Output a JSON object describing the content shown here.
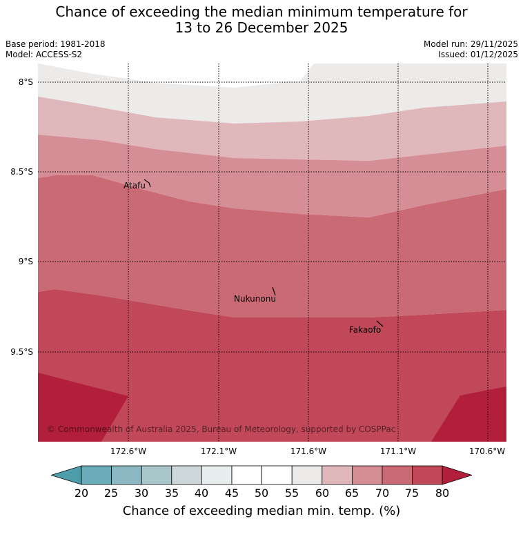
{
  "title_line1": "Chance of exceeding the median minimum temperature for",
  "title_line2": "13 to 26 December 2025",
  "base_period": "Base period: 1981-2018",
  "model": "Model: ACCESS-S2",
  "model_run": "Model run: 29/11/2025",
  "issued": "Issued: 01/12/2025",
  "latitude_labels": [
    "8°S",
    "8.5°S",
    "9°S",
    "9.5°S"
  ],
  "longitude_labels": [
    "172.6°W",
    "172.1°W",
    "171.6°W",
    "171.1°W",
    "170.6°W"
  ],
  "places": [
    "Atafu",
    "Nukunonu",
    "Fakaofo"
  ],
  "copyright": "© Commonwealth of Australia 2025, Bureau of Meteorology, supported by COSPPac",
  "colorbar": {
    "ticks": [
      "20",
      "25",
      "30",
      "35",
      "40",
      "45",
      "50",
      "55",
      "60",
      "65",
      "70",
      "75",
      "80"
    ],
    "colors": [
      "#6aacba",
      "#8bb8c2",
      "#a9c7cb",
      "#cdd7da",
      "#e8eded",
      "#ffffff",
      "#ffffff",
      "#ecebe9",
      "#e0b8bc",
      "#d68e96",
      "#ca6a74",
      "#c04858"
    ],
    "under_color": "#4d9daa",
    "over_color": "#b11f3b",
    "label": "Chance of exceeding median min. temp. (%)"
  },
  "map_colors": {
    "white": "#ffffff",
    "light_grey": "#ecebe9",
    "band_60_65": "#e0b8bc",
    "band_65_70": "#d68e96",
    "band_70_75": "#ca6a74",
    "band_75_80": "#c04858",
    "band_over_80": "#b11f3b"
  }
}
